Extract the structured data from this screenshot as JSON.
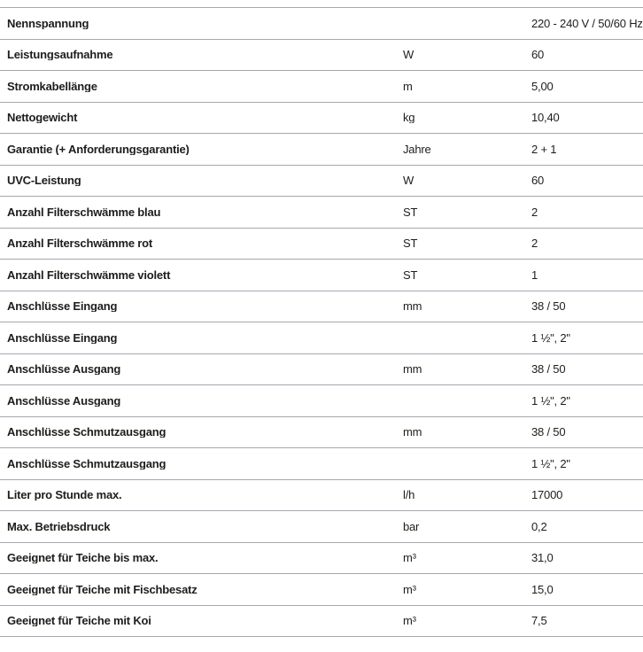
{
  "page": {
    "background_color": "#ffffff",
    "text_color": "#1d1d1b",
    "divider_color": "#a2a9b0"
  },
  "table": {
    "columns": [
      "label",
      "unit",
      "value"
    ],
    "rows": [
      {
        "label": "Nennspannung",
        "unit": "",
        "value": "220 - 240 V / 50/60 Hz"
      },
      {
        "label": "Leistungsaufnahme",
        "unit": "W",
        "value": "60"
      },
      {
        "label": "Stromkabellänge",
        "unit": "m",
        "value": "5,00"
      },
      {
        "label": "Nettogewicht",
        "unit": "kg",
        "value": "10,40"
      },
      {
        "label": "Garantie (+ Anforderungsgarantie)",
        "unit": "Jahre",
        "value": "2 + 1"
      },
      {
        "label": "UVC-Leistung",
        "unit": "W",
        "value": "60"
      },
      {
        "label": "Anzahl Filterschwämme blau",
        "unit": "ST",
        "value": "2"
      },
      {
        "label": "Anzahl Filterschwämme rot",
        "unit": "ST",
        "value": "2"
      },
      {
        "label": "Anzahl Filterschwämme violett",
        "unit": "ST",
        "value": "1"
      },
      {
        "label": "Anschlüsse Eingang",
        "unit": "mm",
        "value": "38 / 50"
      },
      {
        "label": "Anschlüsse Eingang",
        "unit": "",
        "value": "1 ½\", 2\""
      },
      {
        "label": "Anschlüsse Ausgang",
        "unit": "mm",
        "value": "38 / 50"
      },
      {
        "label": "Anschlüsse Ausgang",
        "unit": "",
        "value": "1 ½\", 2\""
      },
      {
        "label": "Anschlüsse Schmutzausgang",
        "unit": "mm",
        "value": "38 / 50"
      },
      {
        "label": "Anschlüsse Schmutzausgang",
        "unit": "",
        "value": "1 ½\", 2\""
      },
      {
        "label": "Liter pro Stunde max.",
        "unit": "l/h",
        "value": "17000"
      },
      {
        "label": "Max. Betriebsdruck",
        "unit": "bar",
        "value": "0,2"
      },
      {
        "label": "Geeignet für Teiche bis max.",
        "unit": "m³",
        "value": "31,0"
      },
      {
        "label": "Geeignet für Teiche mit Fischbesatz",
        "unit": "m³",
        "value": "15,0"
      },
      {
        "label": "Geeignet für Teiche mit Koi",
        "unit": "m³",
        "value": "7,5"
      }
    ]
  }
}
